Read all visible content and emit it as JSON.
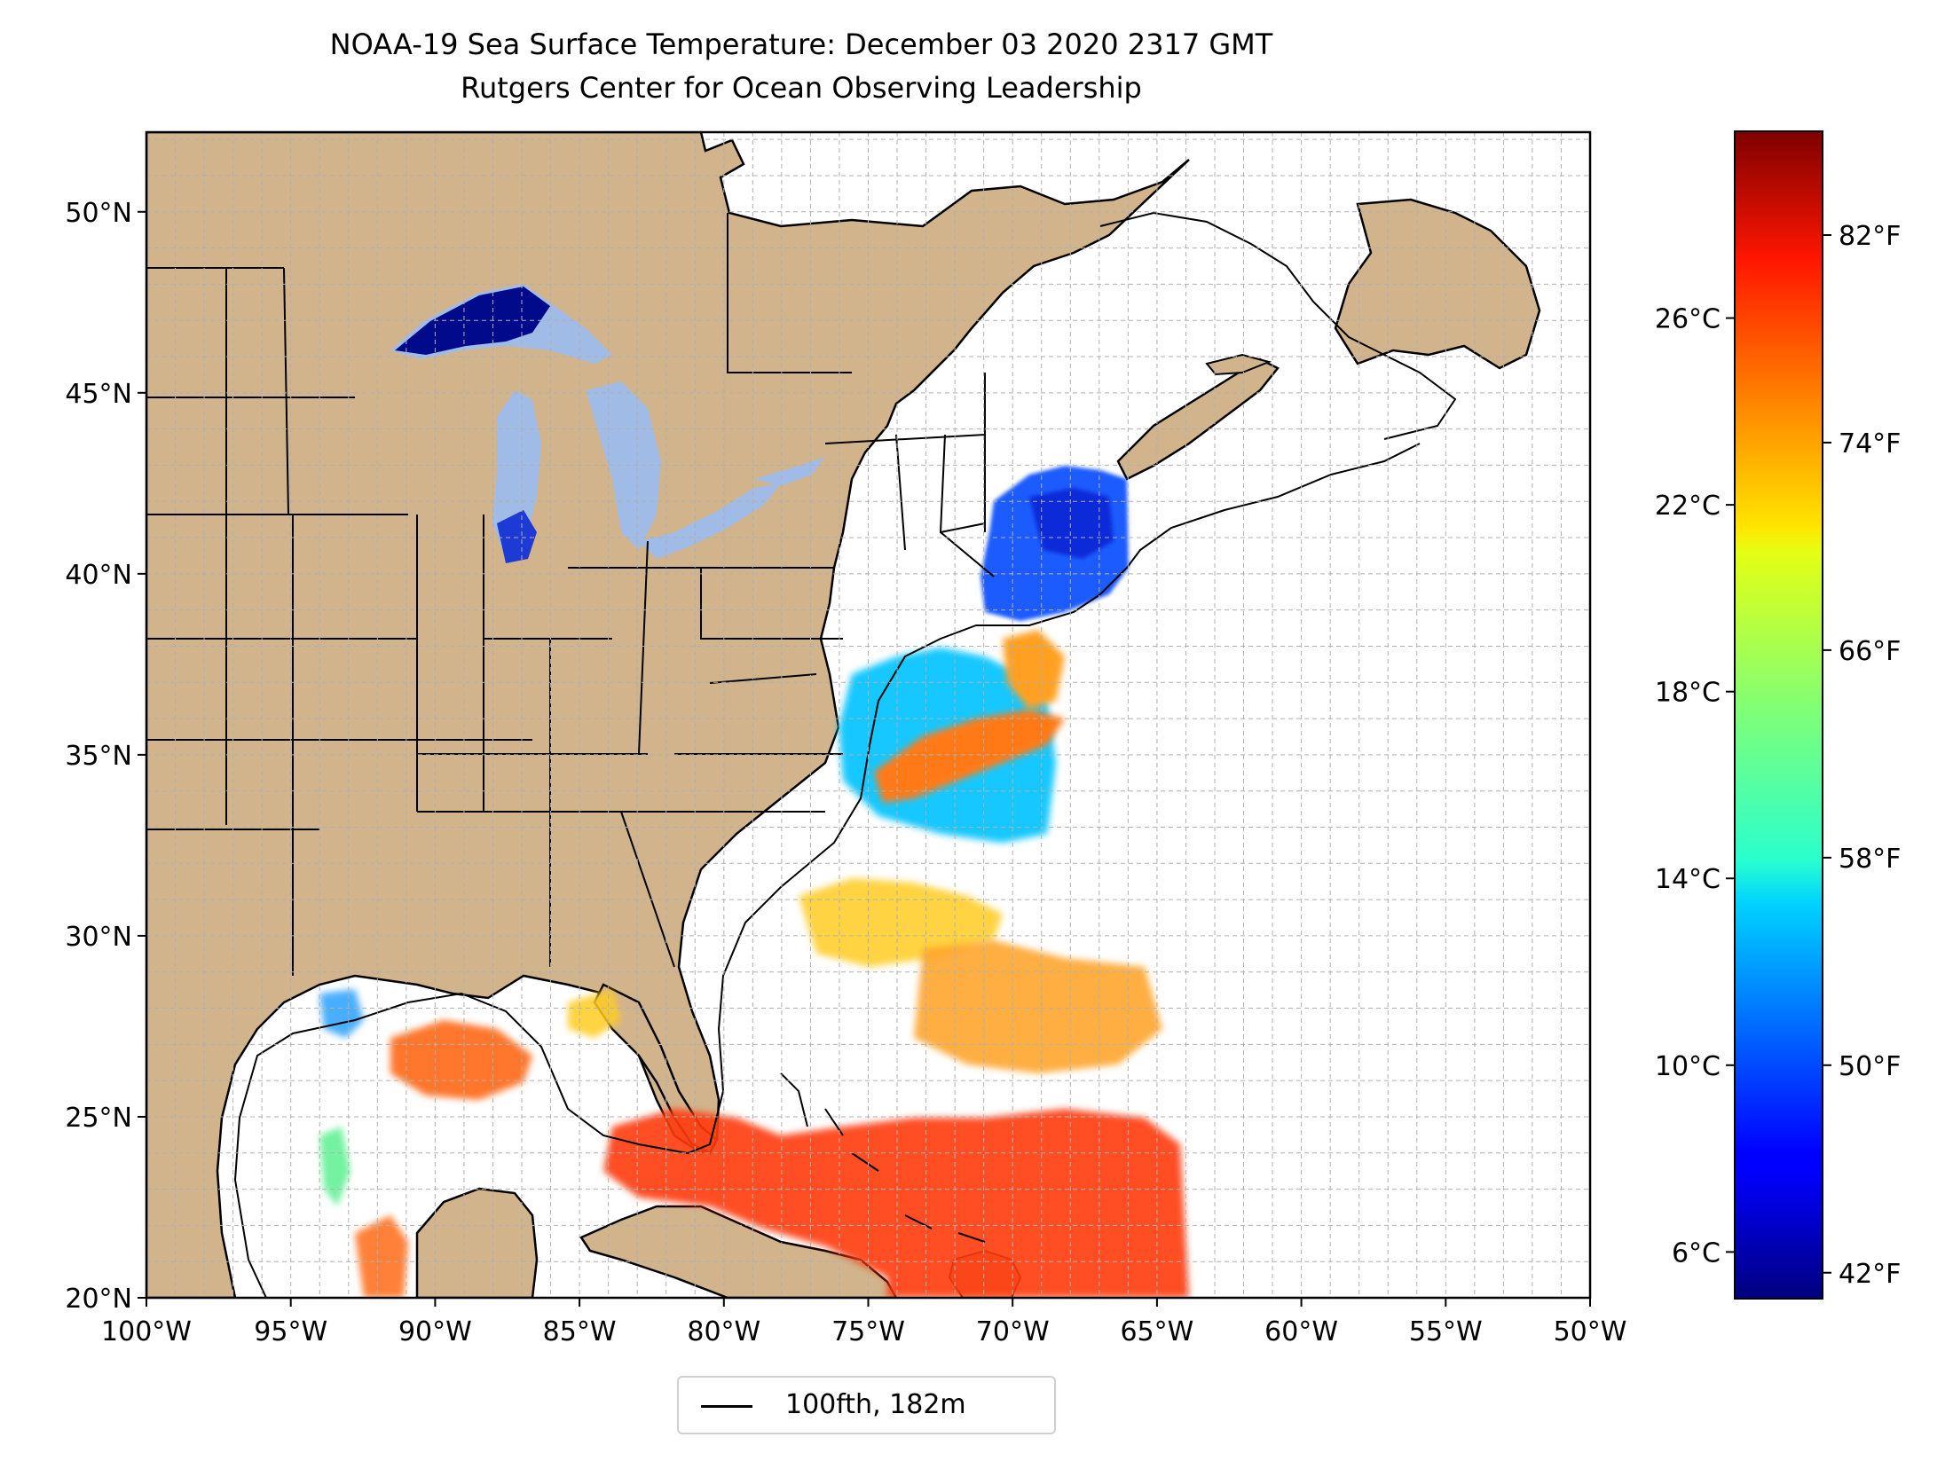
{
  "title": {
    "line1": "NOAA-19 Sea Surface Temperature: December 03 2020 2317 GMT",
    "line2": "Rutgers Center for Ocean Observing Leadership"
  },
  "map": {
    "lon_range": [
      -100,
      -50
    ],
    "lat_range": [
      20,
      52.2
    ],
    "lon_tick_values": [
      -100,
      -95,
      -90,
      -85,
      -80,
      -75,
      -70,
      -65,
      -60,
      -55,
      -50
    ],
    "lon_tick_labels": [
      "100°W",
      "95°W",
      "90°W",
      "85°W",
      "80°W",
      "75°W",
      "70°W",
      "65°W",
      "60°W",
      "55°W",
      "50°W"
    ],
    "lat_tick_values": [
      20,
      25,
      30,
      35,
      40,
      45,
      50
    ],
    "lat_tick_labels": [
      "20°N",
      "25°N",
      "30°N",
      "35°N",
      "40°N",
      "45°N",
      "50°N"
    ],
    "grid": true,
    "land_color": "#d2b48c",
    "ocean_color": "#ffffff",
    "lake_color": "#9fbbe6"
  },
  "colorbar": {
    "colormap": "jet",
    "celsius_range": [
      5,
      30
    ],
    "celsius_ticks": [
      6,
      10,
      14,
      18,
      22,
      26
    ],
    "celsius_labels": [
      "6°C",
      "10°C",
      "14°C",
      "18°C",
      "22°C",
      "26°C"
    ],
    "fahrenheit_ticks": [
      42,
      50,
      58,
      66,
      74,
      82
    ],
    "fahrenheit_labels": [
      "42°F",
      "50°F",
      "58°F",
      "66°F",
      "74°F",
      "82°F"
    ]
  },
  "legend": {
    "label": "100fth, 182m",
    "placement": "bottom-center",
    "line_color": "#000000"
  }
}
